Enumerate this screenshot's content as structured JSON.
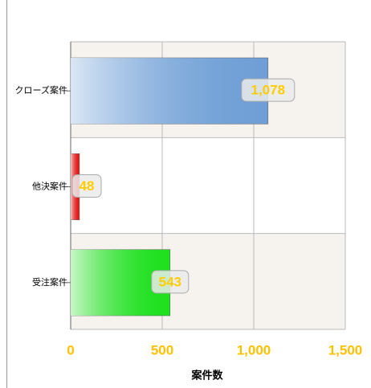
{
  "chart_data": {
    "type": "bar",
    "orientation": "horizontal",
    "categories": [
      "クローズ案件",
      "他決案件",
      "受注案件"
    ],
    "values": [
      1078,
      48,
      543
    ],
    "value_labels": [
      "1,078",
      "48",
      "543"
    ],
    "colors": [
      "#6f9fd6",
      "#e01818",
      "#1fe01f"
    ],
    "xlim": [
      0,
      1500
    ],
    "xticks": [
      0,
      500,
      {
        "value": 1000,
        "label": "1,000"
      },
      {
        "value": 1500,
        "label": "1,500"
      }
    ],
    "xlabel": "案件数",
    "grid": true
  }
}
